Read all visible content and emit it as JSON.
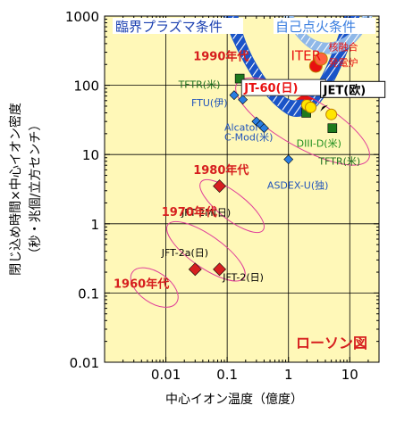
{
  "chart_data": {
    "type": "scatter",
    "title": "ローソン図",
    "xlabel": "中心イオン温度（億度）",
    "ylabel": "閉じ込め時間×中心イオン密度",
    "ylabel_unit": "（秒・兆個/立方センチ）",
    "x_scale": "log",
    "y_scale": "log",
    "xlim": [
      0.001,
      30
    ],
    "ylim": [
      0.01,
      1000
    ],
    "x_ticks": [
      {
        "v": 0.01,
        "t": "0.01"
      },
      {
        "v": 0.1,
        "t": "0.1"
      },
      {
        "v": 1,
        "t": "1"
      },
      {
        "v": 10,
        "t": "10"
      }
    ],
    "y_ticks": [
      {
        "v": 1000,
        "t": "1000"
      },
      {
        "v": 100,
        "t": "100"
      },
      {
        "v": 10,
        "t": "10"
      },
      {
        "v": 1,
        "t": "1"
      },
      {
        "v": 0.1,
        "t": "0.1"
      },
      {
        "v": 0.01,
        "t": "0.01"
      }
    ],
    "regions": {
      "breakeven": "臨界プラズマ条件",
      "ignition": "自己点火条件"
    },
    "eras": [
      {
        "label": "1960年代",
        "x": 0.0065,
        "y": 0.12
      },
      {
        "label": "1970年代",
        "x": 0.045,
        "y": 0.4
      },
      {
        "label": "1980年代",
        "x": 0.12,
        "y": 1.8
      },
      {
        "label": "1990年代",
        "x": 1.7,
        "y": 30
      }
    ],
    "era_labels": [
      {
        "text": "1990年代",
        "x": 0.028,
        "y": 230
      },
      {
        "text": "1980年代",
        "x": 0.028,
        "y": 5.2
      },
      {
        "text": "1970年代",
        "x": 0.0085,
        "y": 1.3
      },
      {
        "text": "1960年代",
        "x": 0.0014,
        "y": 0.12
      }
    ],
    "series": [
      {
        "name": "JFT-2(日)",
        "marker": "diamond",
        "color": "#d62020",
        "x": 0.075,
        "y": 0.22
      },
      {
        "name": "JFT-2a(日)",
        "marker": "diamond",
        "color": "#d62020",
        "x": 0.03,
        "y": 0.22
      },
      {
        "name": "JFT-2M(日)",
        "marker": "diamond",
        "color": "#d62020",
        "x": 0.075,
        "y": 3.5
      },
      {
        "name": "ASDEX-U(独)",
        "marker": "diamond",
        "color": "#2a7de1",
        "x": 1.0,
        "y": 8.5
      },
      {
        "name": "Alcator C-Mod(米)",
        "marker": "diamond",
        "color": "#2a7de1",
        "x": 0.3,
        "y": 30
      },
      {
        "name": "",
        "marker": "diamond",
        "color": "#2a7de1",
        "x": 0.35,
        "y": 27
      },
      {
        "name": "",
        "marker": "diamond",
        "color": "#2a7de1",
        "x": 0.4,
        "y": 24
      },
      {
        "name": "FTU(伊)",
        "marker": "diamond",
        "color": "#2a7de1",
        "x": 0.18,
        "y": 62
      },
      {
        "name": "",
        "marker": "diamond",
        "color": "#2a7de1",
        "x": 0.13,
        "y": 72
      },
      {
        "name": "TFTR(米)",
        "marker": "square",
        "color": "#1e7a1e",
        "x": 0.16,
        "y": 125
      },
      {
        "name": "TFTR(米)",
        "marker": "square",
        "color": "#1e7a1e",
        "x": 5.2,
        "y": 24
      },
      {
        "name": "DIII-D(米)",
        "marker": "square",
        "color": "#1e7a1e",
        "x": 1.95,
        "y": 40
      },
      {
        "name": "JT-60(日)",
        "marker": "circle",
        "color": "#ffe600",
        "x": 2.0,
        "y": 52
      },
      {
        "name": "",
        "marker": "circle",
        "color": "#ffe600",
        "x": 2.3,
        "y": 48
      },
      {
        "name": "JET(欧)",
        "marker": "circle",
        "color": "#ffe600",
        "x": 5.0,
        "y": 38
      },
      {
        "name": "ITER",
        "marker": "circle",
        "color": "#e81010",
        "x": 2.8,
        "y": 190
      },
      {
        "name": "核融合発電炉",
        "marker": "circle",
        "color": "#ff6040",
        "x": 3.4,
        "y": 240
      }
    ],
    "point_labels": [
      {
        "text": "TFTR(米)",
        "x": 0.016,
        "y": 92,
        "color": "#1e6e1e"
      },
      {
        "text": "FTU(伊)",
        "x": 0.026,
        "y": 50,
        "color": "#2255bb"
      },
      {
        "text": "Alcator",
        "x": 0.09,
        "y": 22,
        "color": "#2255bb"
      },
      {
        "text": "C-Mod(米)",
        "x": 0.09,
        "y": 16,
        "color": "#2255bb"
      },
      {
        "text": "DIII-D(米)",
        "x": 1.35,
        "y": 13,
        "color": "#1e8e1e"
      },
      {
        "text": "TFTR(米)",
        "x": 3.1,
        "y": 7.2,
        "color": "#1e6e1e"
      },
      {
        "text": "ASDEX-U(独)",
        "x": 0.45,
        "y": 3.2,
        "color": "#2255bb"
      },
      {
        "text": "JFT-2M(日)",
        "x": 0.018,
        "y": 1.3,
        "color": "#000000"
      },
      {
        "text": "JFT-2a(日)",
        "x": 0.0085,
        "y": 0.34,
        "color": "#000000"
      },
      {
        "text": "JFT-2(日)",
        "x": 0.085,
        "y": 0.15,
        "color": "#000000"
      },
      {
        "text": "ITER",
        "x": 1.1,
        "y": 230,
        "color": "#e81010"
      },
      {
        "text": "核融合",
        "x": 4.5,
        "y": 320,
        "color": "#e81010"
      },
      {
        "text": "発電炉",
        "x": 4.5,
        "y": 190,
        "color": "#e81010"
      },
      {
        "text": "JT-60(日)",
        "x": 0.19,
        "y": 80,
        "color": "#e81010",
        "box": true
      },
      {
        "text": "JET(欧)",
        "x": 3.7,
        "y": 75,
        "color": "#000000",
        "box": true
      }
    ],
    "colors": {
      "plot_background": "#fff8b8",
      "breakeven_band": "#1a54c8",
      "ignition_band": "#8fb8e8",
      "era_ellipse": "#e0409a",
      "era_text": "#d61e1e"
    }
  }
}
